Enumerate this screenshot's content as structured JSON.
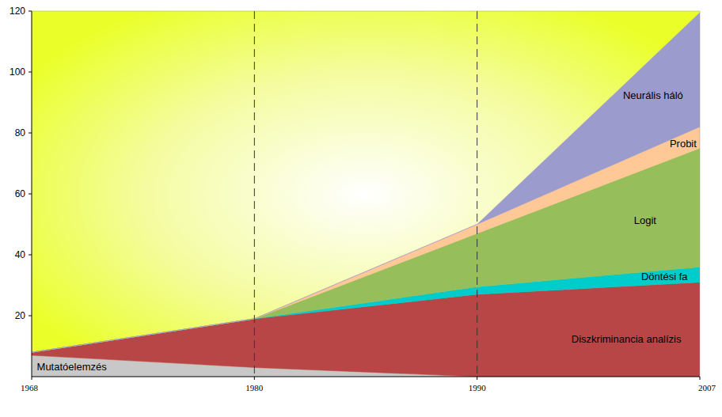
{
  "chart_data": {
    "type": "area",
    "stacked": true,
    "categories": [
      "1968",
      "1980",
      "1990",
      "2007"
    ],
    "series": [
      {
        "name": "Mutatóelemzés",
        "color": "#c8c8c8",
        "values": [
          7,
          3,
          0,
          0
        ]
      },
      {
        "name": "Diszkriminancia analízis",
        "color": "#b94646",
        "values": [
          1,
          16,
          27,
          31
        ]
      },
      {
        "name": "Döntési fa",
        "color": "#00cccc",
        "values": [
          0,
          0,
          2.5,
          5
        ]
      },
      {
        "name": "Logit",
        "color": "#96be5a",
        "values": [
          0,
          0,
          17.5,
          39
        ]
      },
      {
        "name": "Probit",
        "color": "#ffc896",
        "values": [
          0,
          0,
          3,
          7
        ]
      },
      {
        "name": "Neurális háló",
        "color": "#9b9bcd",
        "values": [
          0,
          0,
          0,
          37.5
        ]
      }
    ],
    "ylim": [
      0,
      120
    ],
    "yticks": [
      20,
      40,
      60,
      80,
      100,
      120
    ],
    "grid": false
  }
}
